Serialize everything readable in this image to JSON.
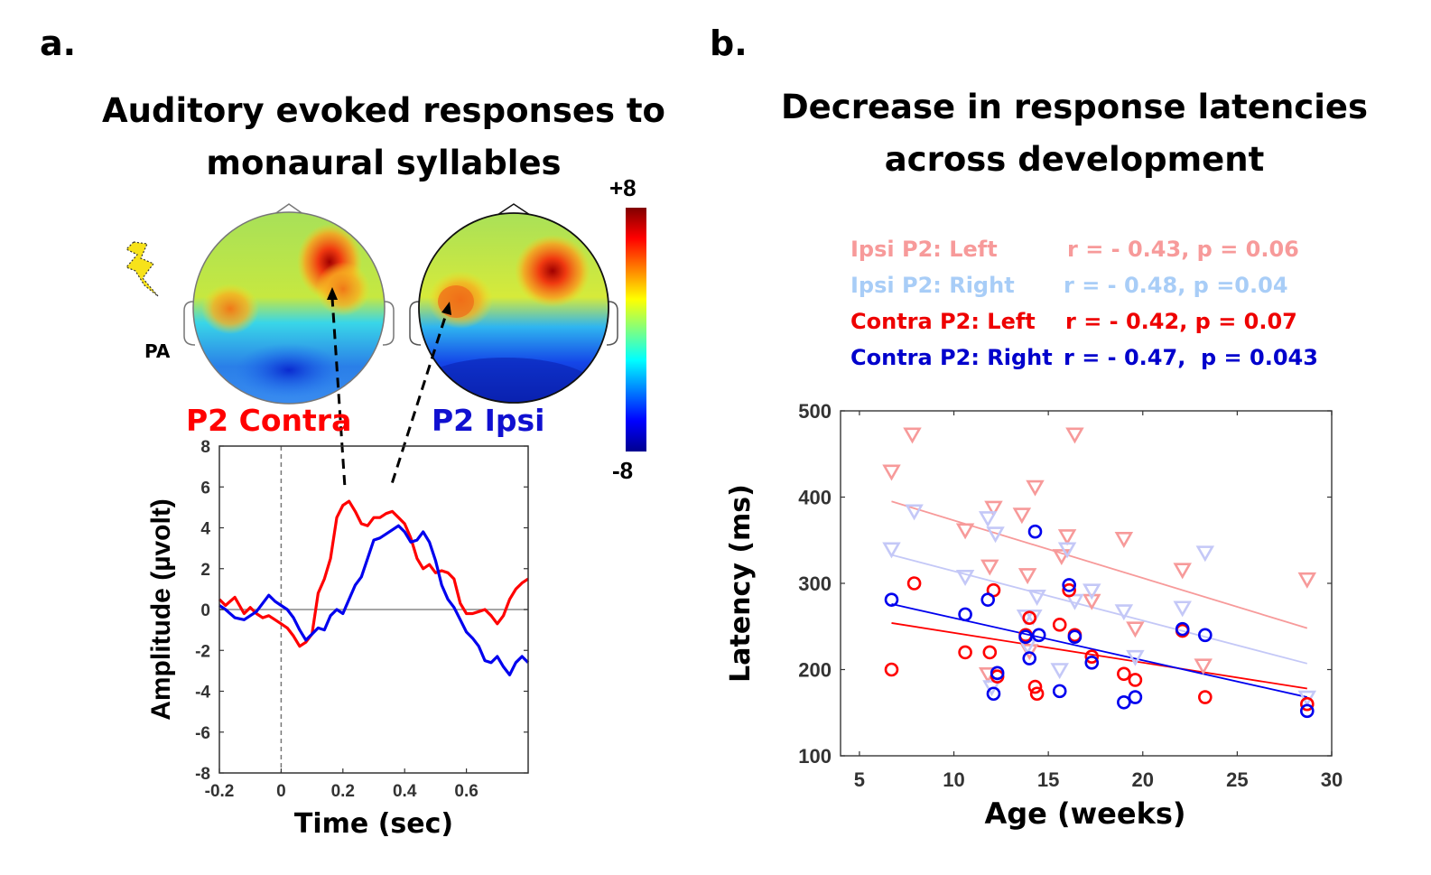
{
  "panel_a": {
    "letter": "a.",
    "title_line1": "Auditory evoked responses  to",
    "title_line2": "monaural syllables",
    "stimulus_label": "PA",
    "stimulus_icon": "lightning-bolt-icon",
    "topomap_contra_label": "P2 Contra",
    "topomap_ipsi_label": "P2 Ipsi",
    "colorbar_max_label": "+8",
    "colorbar_min_label": "-8",
    "colors": {
      "contra": "#ff0000",
      "ipsi": "#0000ee"
    }
  },
  "panel_b": {
    "letter": "b.",
    "title_line1": "Decrease in response latencies",
    "title_line2": "across development",
    "legend": [
      {
        "label": "Ipsi P2: Left",
        "stats": "r = - 0.43, p = 0.06",
        "color": "#f79a9a"
      },
      {
        "label": "Ipsi P2: Right",
        "stats": "r = - 0.48, p =0.04",
        "color": "#a8cdf7"
      },
      {
        "label": "Contra P2: Left",
        "stats": "r = - 0.42, p = 0.07",
        "color": "#ee0000"
      },
      {
        "label": "Contra P2: Right",
        "stats": "r = - 0.47,  p = 0.043",
        "color": "#0000cc"
      }
    ]
  },
  "chart_data": [
    {
      "type": "line",
      "title": "",
      "xlabel": "Time (sec)",
      "ylabel": "Amplitude (µvolt)",
      "xlim": [
        -0.2,
        0.8
      ],
      "ylim": [
        -8,
        8
      ],
      "xticks": [
        -0.2,
        0,
        0.2,
        0.4,
        0.6
      ],
      "xtick_labels": [
        "-0.2",
        "0",
        "0.2",
        "0.4",
        "0.6"
      ],
      "yticks": [
        -8,
        -6,
        -4,
        -2,
        0,
        2,
        4,
        6,
        8
      ],
      "ytick_labels": [
        "-8",
        "-6",
        "-4",
        "-2",
        "0",
        "2",
        "4",
        "6",
        "8"
      ],
      "zero_line": true,
      "stimulus_onset_line": 0,
      "series": [
        {
          "name": "P2 Contra",
          "color": "#ff0000",
          "x": [
            -0.2,
            -0.18,
            -0.15,
            -0.12,
            -0.1,
            -0.08,
            -0.06,
            -0.04,
            -0.02,
            0,
            0.02,
            0.04,
            0.06,
            0.08,
            0.1,
            0.12,
            0.14,
            0.16,
            0.18,
            0.2,
            0.22,
            0.24,
            0.26,
            0.28,
            0.3,
            0.32,
            0.34,
            0.36,
            0.38,
            0.4,
            0.42,
            0.44,
            0.46,
            0.48,
            0.5,
            0.52,
            0.54,
            0.56,
            0.58,
            0.6,
            0.62,
            0.64,
            0.66,
            0.68,
            0.7,
            0.72,
            0.74,
            0.76,
            0.78,
            0.8
          ],
          "y": [
            0.5,
            0.2,
            0.6,
            -0.2,
            0.1,
            -0.2,
            -0.4,
            -0.3,
            -0.5,
            -0.7,
            -0.9,
            -1.3,
            -1.8,
            -1.6,
            -1.2,
            0.8,
            1.5,
            2.5,
            4.5,
            5.1,
            5.3,
            4.8,
            4.2,
            4.1,
            4.5,
            4.5,
            4.7,
            4.8,
            4.5,
            4.2,
            3.5,
            2.5,
            2.0,
            2.2,
            1.8,
            1.9,
            1.8,
            1.5,
            0.3,
            -0.2,
            -0.2,
            -0.1,
            0.0,
            -0.3,
            -0.7,
            -0.3,
            0.5,
            1.0,
            1.3,
            1.5
          ]
        },
        {
          "name": "P2 Ipsi",
          "color": "#0000ee",
          "x": [
            -0.2,
            -0.18,
            -0.15,
            -0.12,
            -0.1,
            -0.08,
            -0.06,
            -0.04,
            -0.02,
            0,
            0.02,
            0.04,
            0.06,
            0.08,
            0.1,
            0.12,
            0.14,
            0.16,
            0.18,
            0.2,
            0.22,
            0.24,
            0.26,
            0.28,
            0.3,
            0.32,
            0.34,
            0.36,
            0.38,
            0.4,
            0.42,
            0.44,
            0.46,
            0.48,
            0.5,
            0.52,
            0.54,
            0.56,
            0.58,
            0.6,
            0.62,
            0.64,
            0.66,
            0.68,
            0.7,
            0.72,
            0.74,
            0.76,
            0.78,
            0.8
          ],
          "y": [
            0.2,
            0.0,
            -0.4,
            -0.5,
            -0.3,
            -0.1,
            0.3,
            0.7,
            0.4,
            0.2,
            0.0,
            -0.4,
            -1.0,
            -1.5,
            -1.2,
            -0.9,
            -1.0,
            -0.3,
            0.0,
            -0.2,
            0.5,
            1.2,
            1.6,
            2.5,
            3.4,
            3.5,
            3.7,
            3.9,
            4.1,
            3.8,
            3.3,
            3.4,
            3.8,
            3.3,
            2.4,
            1.2,
            0.5,
            0.1,
            -0.5,
            -1.1,
            -1.4,
            -1.8,
            -2.5,
            -2.6,
            -2.3,
            -2.8,
            -3.2,
            -2.6,
            -2.3,
            -2.6
          ]
        }
      ]
    },
    {
      "type": "scatter",
      "title": "",
      "xlabel": "Age (weeks)",
      "ylabel": "Latency (ms)",
      "xlim": [
        4,
        30
      ],
      "ylim": [
        100,
        500
      ],
      "xticks": [
        5,
        10,
        15,
        20,
        25,
        30
      ],
      "xtick_labels": [
        "5",
        "10",
        "15",
        "20",
        "25",
        "30"
      ],
      "yticks": [
        100,
        200,
        300,
        400,
        500
      ],
      "ytick_labels": [
        "100",
        "200",
        "300",
        "400",
        "500"
      ],
      "series": [
        {
          "name": "Ipsi P2: Left",
          "marker": "triangle-down",
          "color": "#f79a9a",
          "fit": {
            "x": [
              6.7,
              28.7
            ],
            "y": [
              395,
              248
            ]
          },
          "points": [
            [
              6.7,
              430
            ],
            [
              7.8,
              473
            ],
            [
              10.6,
              362
            ],
            [
              11.9,
              320
            ],
            [
              12.1,
              388
            ],
            [
              13.6,
              380
            ],
            [
              13.9,
              310
            ],
            [
              14.3,
              412
            ],
            [
              15.7,
              332
            ],
            [
              16.0,
              355
            ],
            [
              16.4,
              473
            ],
            [
              17.3,
              280
            ],
            [
              19.0,
              352
            ],
            [
              19.6,
              248
            ],
            [
              22.1,
              316
            ],
            [
              23.2,
              205
            ],
            [
              28.7,
              305
            ],
            [
              11.8,
              195
            ],
            [
              14.0,
              222
            ]
          ]
        },
        {
          "name": "Ipsi P2: Right",
          "marker": "triangle-down",
          "color": "#c4c8f7",
          "fit": {
            "x": [
              6.7,
              28.7
            ],
            "y": [
              333,
              207
            ]
          },
          "points": [
            [
              6.7,
              340
            ],
            [
              7.9,
              384
            ],
            [
              10.6,
              308
            ],
            [
              11.8,
              376
            ],
            [
              12.2,
              358
            ],
            [
              13.8,
              262
            ],
            [
              14.4,
              285
            ],
            [
              14.2,
              262
            ],
            [
              16.0,
              340
            ],
            [
              16.4,
              280
            ],
            [
              17.3,
              292
            ],
            [
              19.0,
              268
            ],
            [
              19.6,
              215
            ],
            [
              22.1,
              272
            ],
            [
              23.3,
              336
            ],
            [
              28.7,
              168
            ],
            [
              12.0,
              180
            ],
            [
              13.9,
              228
            ],
            [
              15.6,
              200
            ]
          ]
        },
        {
          "name": "Contra P2: Left",
          "marker": "circle",
          "color": "#ff0000",
          "fit": {
            "x": [
              6.7,
              28.7
            ],
            "y": [
              254,
              178
            ]
          },
          "points": [
            [
              6.7,
              200
            ],
            [
              7.9,
              300
            ],
            [
              10.6,
              220
            ],
            [
              11.9,
              220
            ],
            [
              12.1,
              292
            ],
            [
              12.3,
              192
            ],
            [
              13.8,
              240
            ],
            [
              14.0,
              260
            ],
            [
              14.3,
              180
            ],
            [
              14.4,
              172
            ],
            [
              15.6,
              252
            ],
            [
              16.1,
              292
            ],
            [
              16.4,
              240
            ],
            [
              17.3,
              215
            ],
            [
              19.0,
              195
            ],
            [
              19.6,
              188
            ],
            [
              22.1,
              245
            ],
            [
              23.3,
              168
            ],
            [
              28.7,
              160
            ]
          ]
        },
        {
          "name": "Contra P2: Right",
          "marker": "circle",
          "color": "#0000ee",
          "fit": {
            "x": [
              6.7,
              28.7
            ],
            "y": [
              276,
              168
            ]
          },
          "points": [
            [
              6.7,
              281
            ],
            [
              10.6,
              264
            ],
            [
              11.8,
              281
            ],
            [
              12.1,
              172
            ],
            [
              12.3,
              196
            ],
            [
              13.8,
              238
            ],
            [
              14.0,
              213
            ],
            [
              14.3,
              360
            ],
            [
              14.5,
              240
            ],
            [
              15.6,
              175
            ],
            [
              16.1,
              298
            ],
            [
              16.4,
              238
            ],
            [
              17.3,
              208
            ],
            [
              19.0,
              162
            ],
            [
              19.6,
              168
            ],
            [
              22.1,
              247
            ],
            [
              23.3,
              240
            ],
            [
              28.7,
              152
            ]
          ]
        }
      ]
    }
  ]
}
